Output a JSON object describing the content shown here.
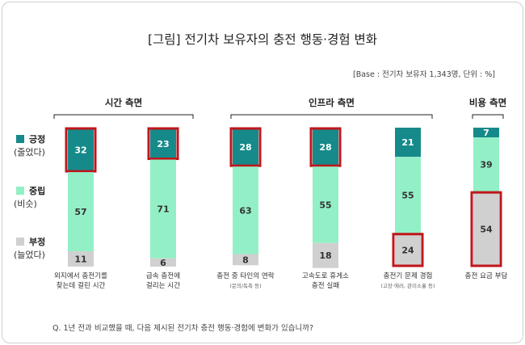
{
  "title": "[그림] 전기차 보유자의 충전 행동·경험 변화",
  "base_note": "[Base : 전기차 보유자 1,343명, 단위 : %]",
  "question": "Q. 1년 전과 비교했을 때, 다음 제시된 전기차 충전 행동·경험에 변화가 있습니까?",
  "colors": {
    "positive": "#168a8a",
    "neutral": "#93f0c6",
    "negative": "#d0d0d0",
    "highlight": "#c0161c",
    "positive_text": "#ffffff",
    "neutral_text": "#333333",
    "negative_text": "#333333"
  },
  "legend": [
    {
      "key": "positive",
      "label": "긍정",
      "sub": "(줄었다)"
    },
    {
      "key": "neutral",
      "label": "중립",
      "sub": "(비슷)"
    },
    {
      "key": "negative",
      "label": "부정",
      "sub": "(늘었다)"
    }
  ],
  "chart_data": {
    "type": "bar",
    "stacked": true,
    "unit": "%",
    "groups": [
      {
        "label": "시간 측면",
        "categories": [
          0,
          1
        ]
      },
      {
        "label": "인프라 측면",
        "categories": [
          2,
          3,
          4
        ]
      },
      {
        "label": "비용 측면",
        "categories": [
          5
        ]
      }
    ],
    "categories": [
      {
        "lines": [
          "외지에서 충전기를",
          "찾는데 걸린 시간"
        ],
        "note": ""
      },
      {
        "lines": [
          "급속 충전에",
          "걸리는 시간"
        ],
        "note": ""
      },
      {
        "lines": [
          "충전 중 타인의 연락"
        ],
        "note": "(문의/독촉 등)"
      },
      {
        "lines": [
          "고속도로 휴게소",
          "충전 실패"
        ],
        "note": ""
      },
      {
        "lines": [
          "충전기 문제 경험"
        ],
        "note": "(고장·에러, 관리소홀 등)"
      },
      {
        "lines": [
          "충전 요금 부담"
        ],
        "note": ""
      }
    ],
    "series": [
      {
        "name": "긍정 (줄었다)",
        "key": "positive",
        "values": [
          32,
          23,
          28,
          28,
          21,
          7
        ]
      },
      {
        "name": "중립 (비슷)",
        "key": "neutral",
        "values": [
          57,
          71,
          63,
          55,
          55,
          39
        ]
      },
      {
        "name": "부정 (늘었다)",
        "key": "negative",
        "values": [
          11,
          6,
          8,
          18,
          24,
          54
        ]
      }
    ],
    "highlighted": [
      {
        "category": 0,
        "series": "positive"
      },
      {
        "category": 1,
        "series": "positive"
      },
      {
        "category": 2,
        "series": "positive"
      },
      {
        "category": 3,
        "series": "positive"
      },
      {
        "category": 4,
        "series": "negative"
      },
      {
        "category": 5,
        "series": "negative"
      }
    ],
    "ylim": [
      0,
      100
    ]
  }
}
